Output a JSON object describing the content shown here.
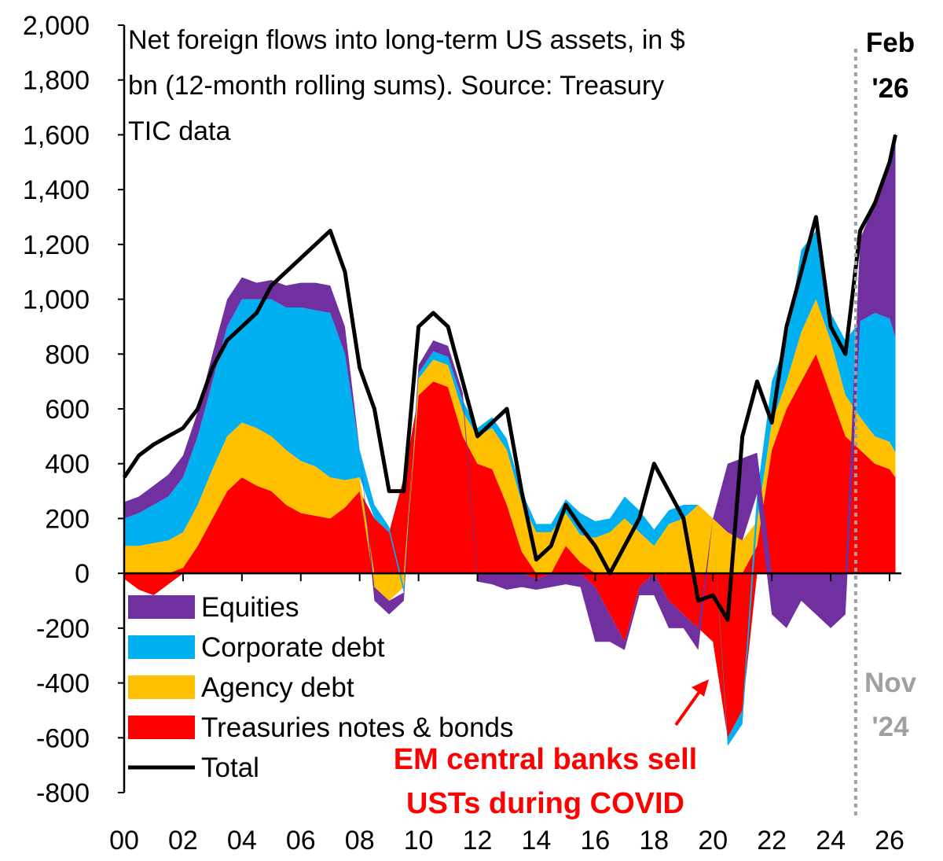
{
  "chart_data": {
    "type": "area",
    "title": "Net foreign flows into long-term US assets, in $ bn (12-month rolling sums). Source:  Treasury TIC data",
    "title_lines": [
      "Net foreign flows into long-term US assets, in $",
      "bn (12-month rolling sums). Source:  Treasury",
      "TIC data"
    ],
    "xlabel": "",
    "ylabel": "",
    "stacked": true,
    "ylim": [
      -800,
      2000
    ],
    "xlim": [
      2000,
      2026.4
    ],
    "y_ticks": [
      2000,
      1800,
      1600,
      1400,
      1200,
      1000,
      800,
      600,
      400,
      200,
      0,
      -200,
      -400,
      -600,
      -800
    ],
    "y_tick_labels": [
      "2,000",
      "1,800",
      "1,600",
      "1,400",
      "1,200",
      "1,000",
      "800",
      "600",
      "400",
      "200",
      "0",
      "-200",
      "-400",
      "-600",
      "-800"
    ],
    "x_tick_values": [
      2000,
      2002,
      2004,
      2006,
      2008,
      2010,
      2012,
      2014,
      2016,
      2018,
      2020,
      2022,
      2024,
      2026
    ],
    "x_tick_labels": [
      "00",
      "02",
      "04",
      "06",
      "08",
      "10",
      "12",
      "14",
      "16",
      "18",
      "20",
      "22",
      "24",
      "26"
    ],
    "grid": false,
    "legend_position": "bottom-left",
    "x": [
      2000.0,
      2000.5,
      2001.0,
      2001.5,
      2002.0,
      2002.5,
      2003.0,
      2003.5,
      2004.0,
      2004.5,
      2005.0,
      2005.5,
      2006.0,
      2006.5,
      2007.0,
      2007.5,
      2008.0,
      2008.5,
      2009.0,
      2009.5,
      2010.0,
      2010.5,
      2011.0,
      2011.5,
      2012.0,
      2012.5,
      2013.0,
      2013.5,
      2014.0,
      2014.5,
      2015.0,
      2015.5,
      2016.0,
      2016.5,
      2017.0,
      2017.5,
      2018.0,
      2018.5,
      2019.0,
      2019.5,
      2020.0,
      2020.5,
      2021.0,
      2021.5,
      2022.0,
      2022.5,
      2023.0,
      2023.5,
      2024.0,
      2024.5,
      2025.0,
      2025.5,
      2026.0,
      2026.2
    ],
    "series": [
      {
        "name": "Treasuries notes & bonds",
        "color": "#ff0000",
        "values": [
          -20,
          -60,
          -80,
          -40,
          20,
          100,
          200,
          300,
          350,
          320,
          300,
          250,
          220,
          210,
          200,
          240,
          300,
          200,
          150,
          350,
          650,
          700,
          680,
          500,
          400,
          380,
          250,
          80,
          -20,
          0,
          100,
          40,
          -50,
          -150,
          -250,
          -50,
          0,
          -100,
          -150,
          -200,
          -250,
          -600,
          -500,
          100,
          450,
          600,
          700,
          800,
          650,
          500,
          450,
          400,
          380,
          350
        ]
      },
      {
        "name": "Agency debt",
        "color": "#ffc000",
        "values": [
          100,
          100,
          110,
          120,
          130,
          150,
          180,
          200,
          200,
          210,
          200,
          200,
          190,
          180,
          150,
          100,
          50,
          -50,
          -100,
          -50,
          60,
          80,
          80,
          90,
          100,
          150,
          200,
          180,
          150,
          150,
          120,
          100,
          130,
          150,
          200,
          150,
          100,
          180,
          200,
          250,
          200,
          150,
          120,
          90,
          100,
          100,
          180,
          200,
          200,
          150,
          120,
          100,
          100,
          90
        ]
      },
      {
        "name": "Corporate debt",
        "color": "#00b0f0",
        "values": [
          100,
          120,
          140,
          160,
          200,
          250,
          320,
          400,
          450,
          470,
          500,
          520,
          560,
          570,
          600,
          460,
          100,
          50,
          20,
          -20,
          20,
          30,
          30,
          40,
          30,
          40,
          40,
          40,
          30,
          30,
          50,
          80,
          60,
          50,
          80,
          80,
          60,
          50,
          50,
          0,
          0,
          -30,
          -50,
          100,
          150,
          150,
          300,
          250,
          100,
          200,
          350,
          450,
          450,
          420
        ]
      },
      {
        "name": "Equities",
        "color": "#7030a0",
        "values": [
          60,
          60,
          70,
          80,
          80,
          90,
          100,
          100,
          80,
          60,
          70,
          80,
          90,
          100,
          100,
          100,
          0,
          -50,
          -50,
          -30,
          30,
          40,
          40,
          30,
          -30,
          -40,
          -60,
          -50,
          -40,
          -50,
          -40,
          -50,
          -200,
          -100,
          -30,
          -30,
          -80,
          -100,
          -50,
          -80,
          0,
          250,
          300,
          150,
          -150,
          -200,
          -100,
          -150,
          -200,
          -150,
          300,
          400,
          550,
          750
        ]
      }
    ],
    "total": {
      "name": "Total",
      "color": "#000000",
      "values": [
        350,
        430,
        470,
        500,
        530,
        600,
        750,
        850,
        900,
        950,
        1050,
        1100,
        1150,
        1200,
        1250,
        1100,
        750,
        600,
        300,
        300,
        900,
        950,
        900,
        700,
        500,
        550,
        600,
        300,
        50,
        100,
        250,
        170,
        100,
        0,
        100,
        200,
        400,
        300,
        200,
        -100,
        -80,
        -170,
        500,
        700,
        550,
        900,
        1100,
        1300,
        900,
        800,
        1250,
        1350,
        1500,
        1600
      ]
    },
    "annotations": [
      {
        "id": "feb26-label",
        "lines": [
          "Feb",
          "'26"
        ],
        "color": "#000000"
      },
      {
        "id": "nov24-label",
        "lines": [
          "Nov",
          "'24"
        ],
        "color": "#a0a0a0",
        "marker_x": 2024.85
      },
      {
        "id": "em-covid-label",
        "lines": [
          "EM central banks sell",
          "USTs during COVID"
        ],
        "color": "#ff0000"
      }
    ]
  }
}
